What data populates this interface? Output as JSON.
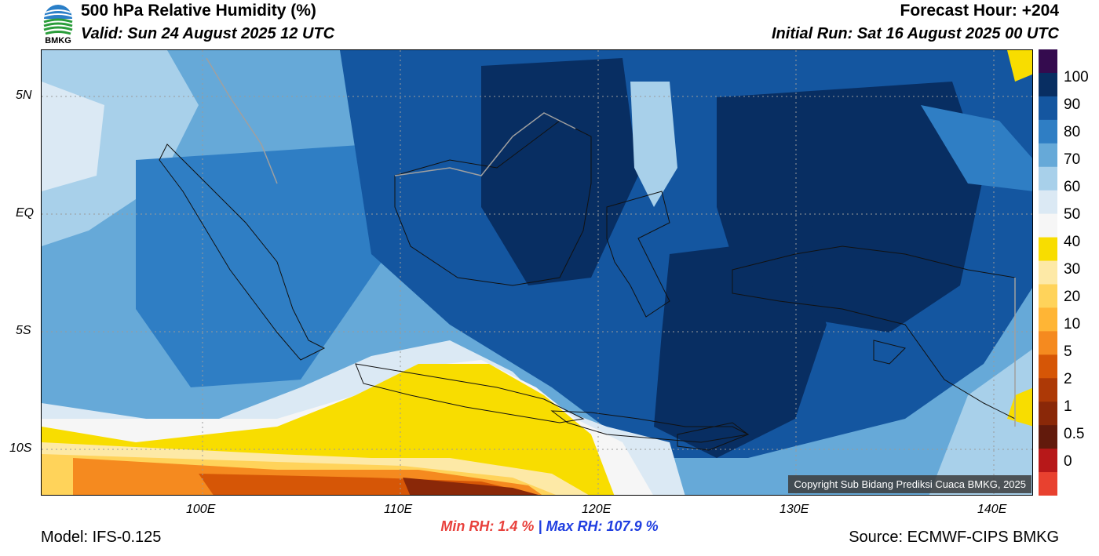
{
  "logo": {
    "label": "BMKG",
    "icon": "bmkg-logo-icon"
  },
  "header": {
    "title": "500 hPa Relative Humidity (%)",
    "valid": "Valid: Sun 24 August 2025 12 UTC",
    "forecast_hour": "Forecast Hour: +204",
    "initial_run": "Initial Run: Sat 16 August 2025 00 UTC"
  },
  "map": {
    "lat_labels": [
      "5N",
      "EQ",
      "5S",
      "10S"
    ],
    "lon_labels": [
      "100E",
      "110E",
      "120E",
      "130E",
      "140E"
    ],
    "gridlines": "dotted"
  },
  "colorbar": {
    "labels": [
      "100",
      "90",
      "80",
      "70",
      "60",
      "50",
      "40",
      "30",
      "20",
      "10",
      "5",
      "2",
      "1",
      "0.5",
      "0"
    ],
    "colors": [
      "#340b4e",
      "#082e62",
      "#1456a0",
      "#2f7ec4",
      "#66a9d8",
      "#a8d0ea",
      "#dbe9f4",
      "#f6f6f6",
      "#f8dd00",
      "#fde9a6",
      "#ffd35a",
      "#ffb535",
      "#f58a1f",
      "#d65606",
      "#ad3906",
      "#8a2808",
      "#621a0c",
      "#b71819",
      "#e8412f"
    ]
  },
  "stats": {
    "min_label": "Min RH:",
    "min_value": "1.4 %",
    "separator": "|",
    "max_label": "Max RH:",
    "max_value": "107.9 %"
  },
  "footer": {
    "model": "Model: IFS-0.125",
    "source": "Source: ECMWF-CIPS BMKG",
    "copyright": "Copyright Sub Bidang Prediksi Cuaca BMKG, 2025"
  }
}
